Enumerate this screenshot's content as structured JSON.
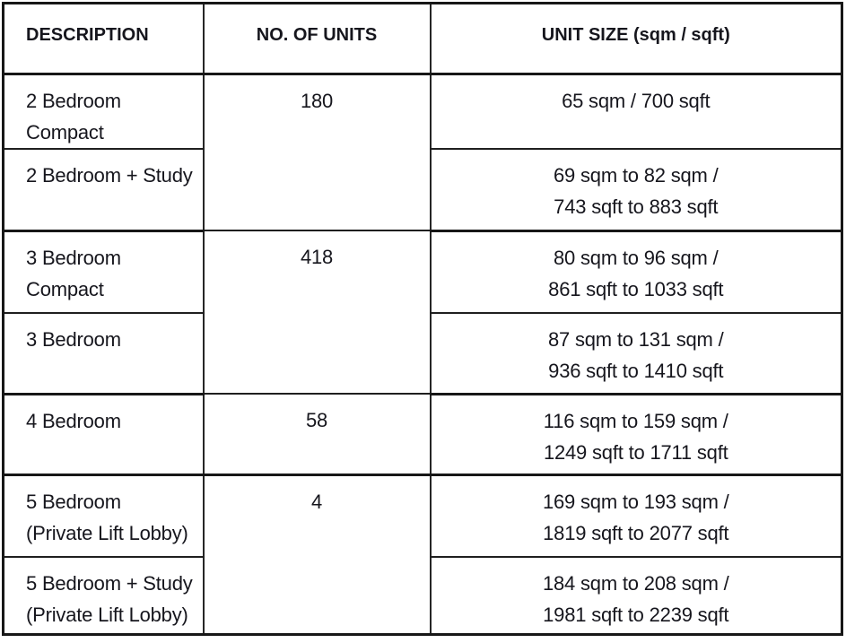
{
  "table": {
    "title": "Unit mix and sizes table",
    "headers": [
      "DESCRIPTION",
      "NO. OF UNITS",
      "UNIT SIZE (sqm / sqft)"
    ],
    "rows": [
      {
        "description_lines": [
          "2 Bedroom Compact"
        ],
        "units": "180",
        "size_lines": [
          "65 sqm / 700 sqft"
        ]
      },
      {
        "description_lines": [
          "2 Bedroom + Study"
        ],
        "size_lines": [
          "69 sqm to 82 sqm /",
          "743 sqft to 883 sqft"
        ]
      },
      {
        "description_lines": [
          "3 Bedroom Compact"
        ],
        "units": "418",
        "size_lines": [
          "80 sqm to 96 sqm /",
          "861 sqft to 1033 sqft"
        ]
      },
      {
        "description_lines": [
          "3 Bedroom"
        ],
        "size_lines": [
          "87 sqm to 131 sqm /",
          "936 sqft to 1410 sqft"
        ]
      },
      {
        "description_lines": [
          "4 Bedroom"
        ],
        "units": "58",
        "size_lines": [
          "116 sqm to 159 sqm /",
          "1249 sqft to 1711 sqft"
        ]
      },
      {
        "description_lines": [
          "5 Bedroom",
          "(Private Lift Lobby)"
        ],
        "units": "4",
        "size_lines": [
          "169 sqm to 193 sqm /",
          "1819 sqft to 2077 sqft"
        ]
      },
      {
        "description_lines": [
          "5 Bedroom + Study",
          "(Private Lift Lobby)"
        ],
        "size_lines": [
          "184 sqm to 208 sqm /",
          "1981 sqft to 2239 sqft"
        ]
      }
    ],
    "merges": {
      "units_180_rowspan": 2,
      "units_418_rowspan": 2,
      "units_58_rowspan": 1,
      "units_4_rowspan": 2
    },
    "colors": {
      "border": "#171717",
      "text": "#16161d",
      "background": "#ffffff"
    }
  }
}
